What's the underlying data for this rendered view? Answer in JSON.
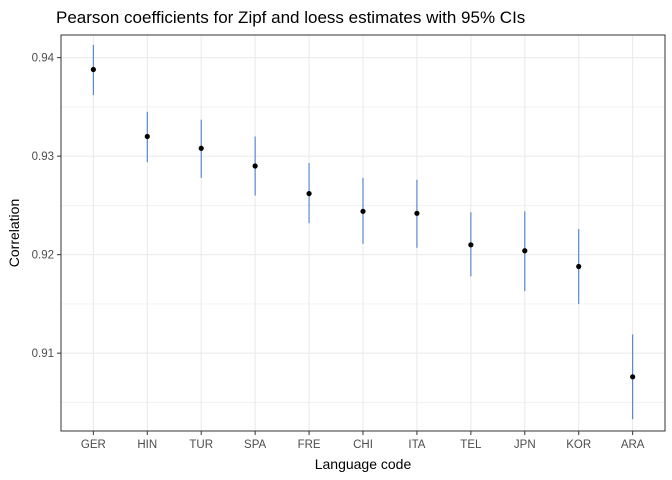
{
  "chart_data": {
    "type": "scatter",
    "title": "Pearson coefficients for Zipf and loess estimates with 95% CIs",
    "xlabel": "Language code",
    "ylabel": "Correlation",
    "categories": [
      "GER",
      "HIN",
      "TUR",
      "SPA",
      "FRE",
      "CHI",
      "ITA",
      "TEL",
      "JPN",
      "KOR",
      "ARA"
    ],
    "values": [
      0.9388,
      0.932,
      0.9308,
      0.929,
      0.9262,
      0.9244,
      0.9242,
      0.921,
      0.9204,
      0.9188,
      0.9076
    ],
    "ci_lower": [
      0.9362,
      0.9294,
      0.9278,
      0.926,
      0.9232,
      0.9211,
      0.9207,
      0.9178,
      0.9163,
      0.915,
      0.9033
    ],
    "ci_upper": [
      0.9413,
      0.9345,
      0.9337,
      0.932,
      0.9293,
      0.9278,
      0.9276,
      0.9243,
      0.9244,
      0.9226,
      0.9119
    ],
    "ylim": [
      0.9021,
      0.9423
    ],
    "yticks": [
      0.91,
      0.92,
      0.93,
      0.94
    ],
    "ytick_labels": [
      "0.91",
      "0.92",
      "0.93",
      "0.94"
    ],
    "grid": true,
    "colors": {
      "point": "#000000",
      "errorbar": "#4a7fd4",
      "grid": "#ebebeb",
      "panel_border": "#333333"
    }
  }
}
